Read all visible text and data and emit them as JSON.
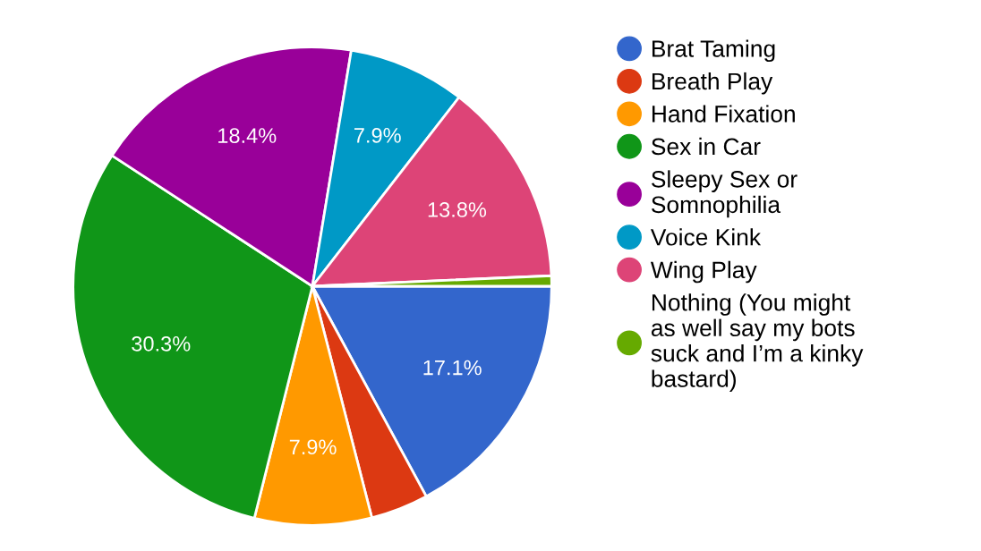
{
  "chart_data": {
    "type": "pie",
    "categories": [
      "Brat Taming",
      "Breath Play",
      "Hand Fixation",
      "Sex in Car",
      "Sleepy Sex or Somnophilia",
      "Voice Kink",
      "Wing Play",
      "Nothing (You might as well say my bots suck and I’m a kinky bastard)"
    ],
    "values": [
      17.1,
      3.9,
      7.9,
      30.3,
      18.4,
      7.9,
      13.8,
      0.7
    ],
    "value_labels": [
      "17.1%",
      null,
      "7.9%",
      "30.3%",
      "18.4%",
      "7.9%",
      "13.8%",
      null
    ],
    "colors": [
      "#3366cc",
      "#dc3912",
      "#ff9900",
      "#109618",
      "#990099",
      "#0099c6",
      "#dd4477",
      "#66aa00"
    ],
    "legend": "right"
  }
}
